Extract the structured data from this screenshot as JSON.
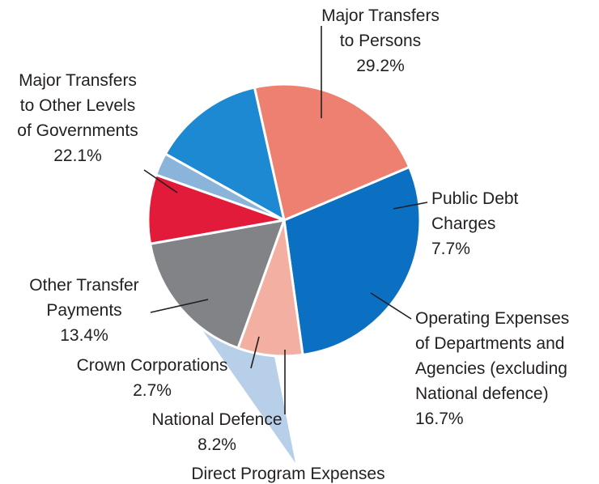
{
  "chart_data": {
    "type": "pie",
    "title": "",
    "slices": [
      {
        "label_lines": [
          "Major Transfers",
          "to Persons"
        ],
        "value": 29.2,
        "value_label": "29.2%",
        "color": "#0b6fc2"
      },
      {
        "label_lines": [
          "Public Debt",
          "Charges"
        ],
        "value": 7.7,
        "value_label": "7.7%",
        "color": "#f4afa3"
      },
      {
        "label_lines": [
          "Operating Expenses",
          "of Departments and",
          "Agencies (excluding",
          "National defence)"
        ],
        "value": 16.7,
        "value_label": "16.7%",
        "color": "#828387"
      },
      {
        "label_lines": [
          "National Defence"
        ],
        "value": 8.2,
        "value_label": "8.2%",
        "color": "#e31b3b"
      },
      {
        "label_lines": [
          "Crown Corporations"
        ],
        "value": 2.7,
        "value_label": "2.7%",
        "color": "#8bb4da"
      },
      {
        "label_lines": [
          "Other Transfer",
          "Payments"
        ],
        "value": 13.4,
        "value_label": "13.4%",
        "color": "#1c89d2"
      },
      {
        "label_lines": [
          "Major Transfers",
          "to Other Levels",
          "of Governments"
        ],
        "value": 22.1,
        "value_label": "22.1%",
        "color": "#ed8070"
      }
    ],
    "group_annotation": "Direct Program Expenses",
    "highlight_color": "#b7cfe9"
  }
}
